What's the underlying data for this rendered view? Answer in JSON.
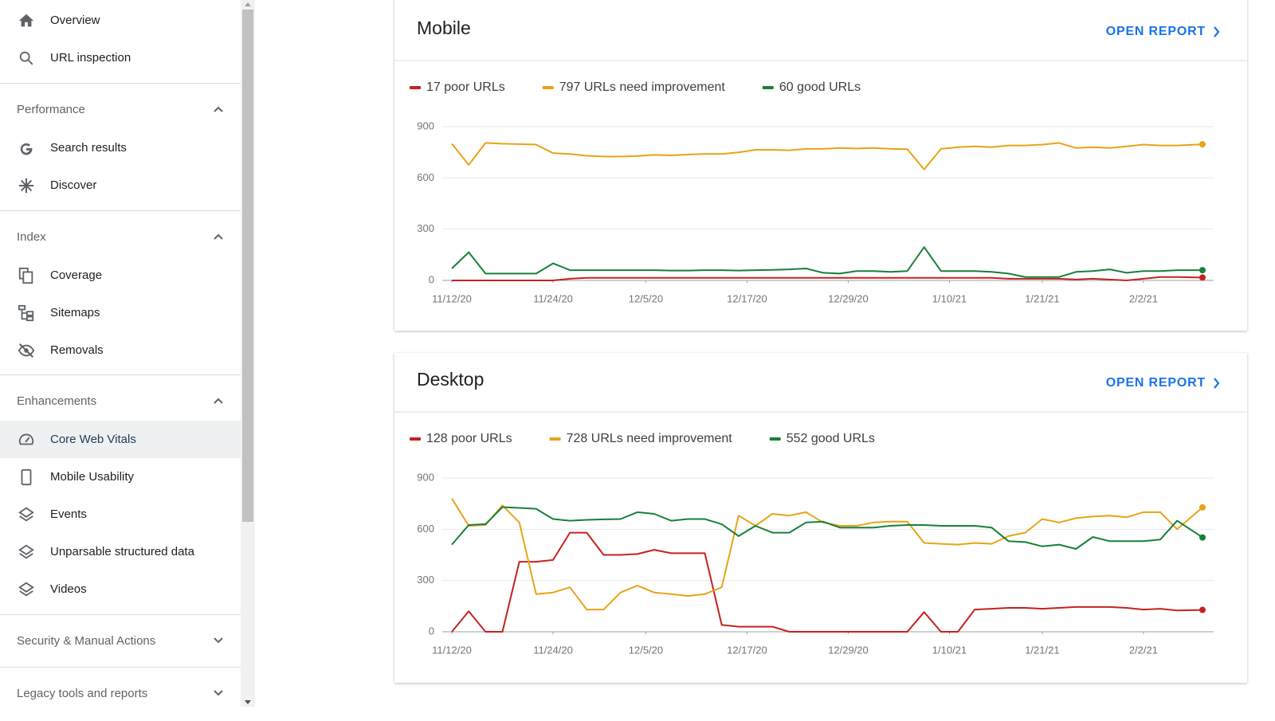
{
  "sidebar": {
    "top": [
      "Overview",
      "URL inspection"
    ],
    "sections": [
      {
        "title": "Performance",
        "items": [
          "Search results",
          "Discover"
        ]
      },
      {
        "title": "Index",
        "items": [
          "Coverage",
          "Sitemaps",
          "Removals"
        ]
      },
      {
        "title": "Enhancements",
        "items": [
          "Core Web Vitals",
          "Mobile Usability",
          "Events",
          "Unparsable structured data",
          "Videos"
        ]
      },
      {
        "title": "Security & Manual Actions",
        "items": []
      },
      {
        "title": "Legacy tools and reports",
        "items": []
      }
    ]
  },
  "chart_data": [
    {
      "type": "line",
      "title": "Mobile",
      "link": "OPEN REPORT",
      "x": [
        0,
        2,
        4,
        6,
        8,
        10,
        12,
        14,
        16,
        18,
        20,
        22,
        24,
        26,
        28,
        30,
        32,
        34,
        36,
        38,
        40,
        42,
        44,
        46,
        48,
        50,
        52,
        54,
        56,
        58,
        60,
        62,
        64,
        66,
        68,
        70,
        72,
        74,
        76,
        78,
        80,
        82,
        84,
        86,
        89
      ],
      "xlim": [
        0,
        89
      ],
      "xticks": [
        {
          "value": 0,
          "label": "11/12/20"
        },
        {
          "value": 12,
          "label": "11/24/20"
        },
        {
          "value": 23,
          "label": "12/5/20"
        },
        {
          "value": 35,
          "label": "12/17/20"
        },
        {
          "value": 47,
          "label": "12/29/20"
        },
        {
          "value": 59,
          "label": "1/10/21"
        },
        {
          "value": 70,
          "label": "1/21/21"
        },
        {
          "value": 82,
          "label": "2/2/21"
        }
      ],
      "ylim": [
        0,
        900
      ],
      "yticks": [
        0,
        300,
        600,
        900
      ],
      "grid": true,
      "series": [
        {
          "name": "17 poor URLs",
          "color": "#c5221f",
          "values": [
            0,
            0,
            0,
            0,
            0,
            0,
            0,
            10,
            15,
            15,
            15,
            15,
            15,
            15,
            15,
            15,
            15,
            15,
            15,
            15,
            15,
            15,
            15,
            15,
            15,
            15,
            15,
            15,
            15,
            15,
            15,
            15,
            15,
            10,
            10,
            10,
            10,
            5,
            10,
            5,
            0,
            10,
            20,
            20,
            17
          ]
        },
        {
          "name": "797 URLs need improvement",
          "color": "#e8a317",
          "values": [
            800,
            676,
            805,
            800,
            798,
            795,
            745,
            740,
            730,
            725,
            725,
            728,
            735,
            732,
            737,
            740,
            740,
            750,
            765,
            765,
            762,
            770,
            770,
            775,
            772,
            775,
            770,
            768,
            650,
            770,
            780,
            785,
            780,
            790,
            790,
            795,
            805,
            775,
            780,
            775,
            785,
            795,
            790,
            790,
            797
          ]
        },
        {
          "name": "60 good URLs",
          "color": "#188038",
          "values": [
            70,
            165,
            40,
            40,
            40,
            40,
            100,
            60,
            60,
            60,
            60,
            60,
            60,
            58,
            58,
            60,
            60,
            58,
            60,
            62,
            65,
            70,
            45,
            40,
            55,
            55,
            50,
            55,
            195,
            55,
            55,
            55,
            50,
            40,
            20,
            20,
            20,
            50,
            55,
            65,
            45,
            55,
            55,
            60,
            60
          ]
        }
      ]
    },
    {
      "type": "line",
      "title": "Desktop",
      "link": "OPEN REPORT",
      "x": [
        0,
        2,
        4,
        6,
        8,
        10,
        12,
        14,
        16,
        18,
        20,
        22,
        24,
        26,
        28,
        30,
        32,
        34,
        36,
        38,
        40,
        42,
        44,
        46,
        48,
        50,
        52,
        54,
        56,
        58,
        60,
        62,
        64,
        66,
        68,
        70,
        72,
        74,
        76,
        78,
        80,
        82,
        84,
        86,
        89
      ],
      "xlim": [
        0,
        89
      ],
      "xticks": [
        {
          "value": 0,
          "label": "11/12/20"
        },
        {
          "value": 12,
          "label": "11/24/20"
        },
        {
          "value": 23,
          "label": "12/5/20"
        },
        {
          "value": 35,
          "label": "12/17/20"
        },
        {
          "value": 47,
          "label": "12/29/20"
        },
        {
          "value": 59,
          "label": "1/10/21"
        },
        {
          "value": 70,
          "label": "1/21/21"
        },
        {
          "value": 82,
          "label": "2/2/21"
        }
      ],
      "ylim": [
        0,
        900
      ],
      "yticks": [
        0,
        300,
        600,
        900
      ],
      "grid": true,
      "series": [
        {
          "name": "128 poor URLs",
          "color": "#c5221f",
          "values": [
            0,
            120,
            0,
            0,
            410,
            410,
            420,
            580,
            580,
            450,
            450,
            455,
            480,
            460,
            460,
            460,
            40,
            30,
            30,
            30,
            0,
            0,
            0,
            0,
            0,
            0,
            0,
            0,
            115,
            0,
            0,
            130,
            135,
            140,
            140,
            135,
            140,
            145,
            145,
            145,
            140,
            130,
            135,
            125,
            128
          ]
        },
        {
          "name": "728 URLs need improvement",
          "color": "#e8a317",
          "values": [
            780,
            620,
            625,
            740,
            640,
            220,
            230,
            260,
            130,
            130,
            230,
            270,
            230,
            220,
            210,
            220,
            260,
            680,
            620,
            690,
            680,
            700,
            640,
            620,
            620,
            640,
            645,
            645,
            520,
            515,
            510,
            520,
            515,
            560,
            580,
            660,
            640,
            665,
            675,
            680,
            670,
            700,
            700,
            600,
            728
          ]
        },
        {
          "name": "552 good URLs",
          "color": "#188038",
          "values": [
            510,
            625,
            630,
            730,
            725,
            720,
            660,
            650,
            655,
            658,
            660,
            700,
            690,
            650,
            660,
            660,
            630,
            560,
            620,
            580,
            580,
            640,
            645,
            610,
            610,
            610,
            620,
            625,
            625,
            620,
            620,
            620,
            610,
            530,
            525,
            500,
            510,
            485,
            555,
            530,
            530,
            530,
            540,
            650,
            552
          ]
        }
      ]
    }
  ]
}
